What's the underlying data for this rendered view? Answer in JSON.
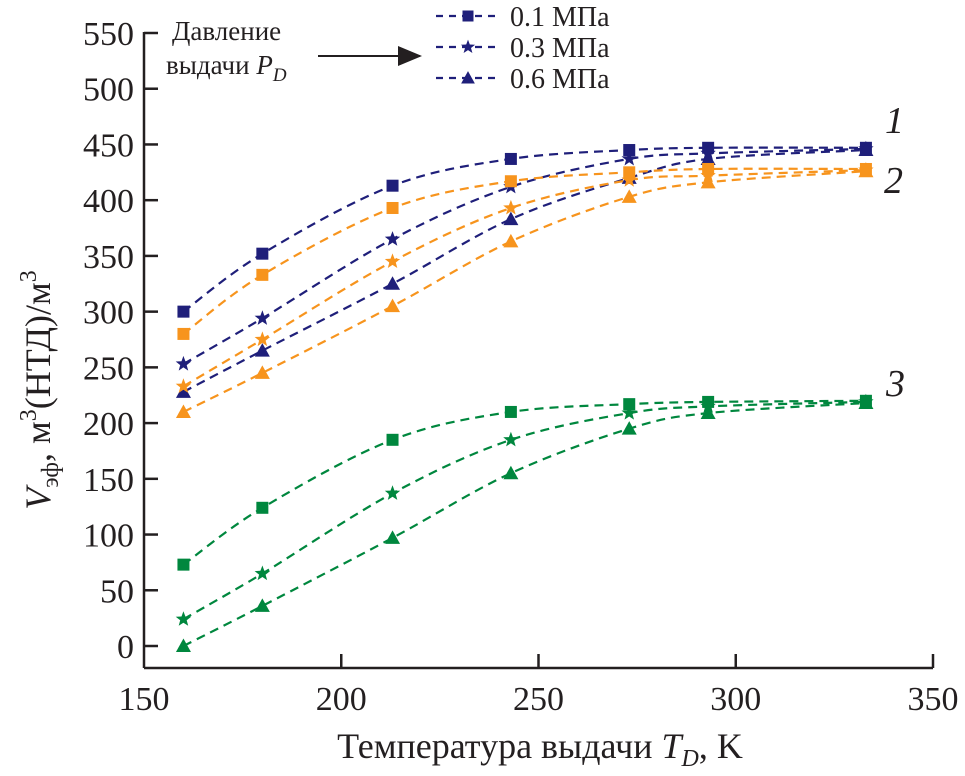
{
  "chart_data": {
    "type": "line",
    "title": "",
    "xlabel": "Температура выдачи T_D, K",
    "xlabel_parts": {
      "main": "Температура выдачи ",
      "var": "T",
      "sub": "D",
      "unit": ", K"
    },
    "ylabel": "V_эф, м3(НТД)/м3",
    "ylabel_parts": {
      "var": "V",
      "sub": "эф",
      "mid": ", м",
      "sup1": "3",
      "mid2": "(НТД)/м",
      "sup2": "3"
    },
    "xlim": [
      150,
      350
    ],
    "ylim": [
      0,
      550
    ],
    "xticks": [
      150,
      200,
      250,
      300,
      350
    ],
    "yticks": [
      0,
      50,
      100,
      150,
      200,
      250,
      300,
      350,
      400,
      450,
      500,
      550
    ],
    "grid": false,
    "legend": {
      "placement": "top-center",
      "entries": [
        {
          "label": "0.1 МПа",
          "marker": "square"
        },
        {
          "label": "0.3 МПа",
          "marker": "star"
        },
        {
          "label": "0.6 МПа",
          "marker": "triangle"
        }
      ]
    },
    "annotation": {
      "line1": "Давление",
      "line2": "выдачи ",
      "var": "P",
      "sub": "D"
    },
    "curve_labels": [
      {
        "text": "1",
        "group": "navy"
      },
      {
        "text": "2",
        "group": "orange"
      },
      {
        "text": "3",
        "group": "green"
      }
    ],
    "colors": {
      "navy": "#1f1f7a",
      "orange": "#f7941d",
      "green": "#00873e",
      "axis": "#231f20"
    },
    "x": [
      160,
      180,
      213,
      243,
      273,
      293,
      333
    ],
    "series": [
      {
        "name": "1 – 0.1 МПа",
        "group": "navy",
        "marker": "square",
        "values": [
          300,
          352,
          413,
          437,
          445,
          447,
          447
        ]
      },
      {
        "name": "1 – 0.3 МПа",
        "group": "navy",
        "marker": "star",
        "values": [
          253,
          294,
          365,
          412,
          437,
          442,
          446
        ]
      },
      {
        "name": "1 – 0.6 МПа",
        "group": "navy",
        "marker": "triangle",
        "values": [
          228,
          265,
          325,
          383,
          420,
          437,
          445
        ]
      },
      {
        "name": "2 – 0.1 МПа",
        "group": "orange",
        "marker": "square",
        "values": [
          280,
          333,
          393,
          417,
          425,
          428,
          428
        ]
      },
      {
        "name": "2 – 0.3 МПа",
        "group": "orange",
        "marker": "star",
        "values": [
          233,
          275,
          345,
          393,
          418,
          422,
          427
        ]
      },
      {
        "name": "2 – 0.6 МПа",
        "group": "orange",
        "marker": "triangle",
        "values": [
          210,
          245,
          305,
          363,
          403,
          416,
          426
        ]
      },
      {
        "name": "3 – 0.1 МПа",
        "group": "green",
        "marker": "square",
        "values": [
          73,
          124,
          185,
          210,
          217,
          219,
          220
        ]
      },
      {
        "name": "3 – 0.3 МПа",
        "group": "green",
        "marker": "star",
        "values": [
          24,
          65,
          137,
          185,
          209,
          215,
          219
        ]
      },
      {
        "name": "3 – 0.6 МПа",
        "group": "green",
        "marker": "triangle",
        "values": [
          0,
          36,
          97,
          155,
          195,
          209,
          218
        ]
      }
    ]
  }
}
